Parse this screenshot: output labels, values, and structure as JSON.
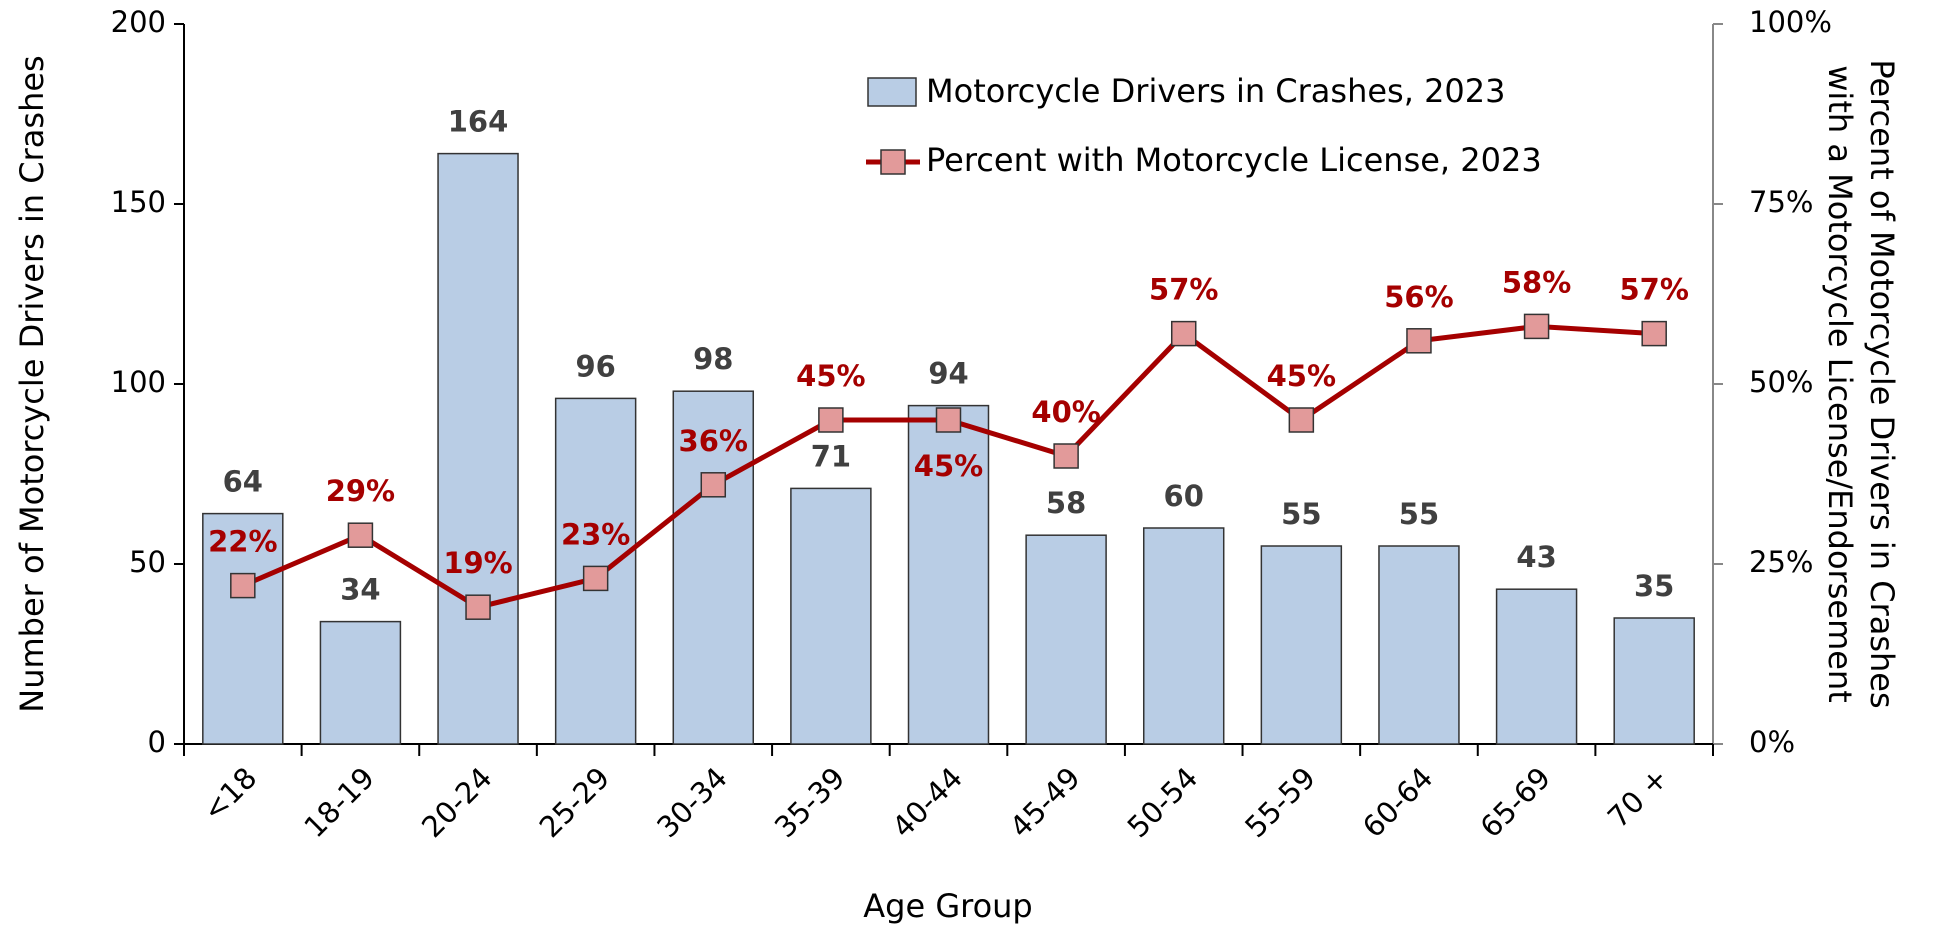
{
  "chart_data": {
    "type": "bar_line",
    "x_label": "Age Group",
    "y_label": "Number of Motorcycle Drivers in Crashes",
    "y2_label": [
      "Percent of Motorcycle Drivers in Crashes",
      "with a Motorcycle License/Endorsement"
    ],
    "categories": [
      "<18",
      "18-19",
      "20-24",
      "25-29",
      "30-34",
      "35-39",
      "40-44",
      "45-49",
      "50-54",
      "55-59",
      "60-64",
      "65-69",
      "70 +"
    ],
    "series": [
      {
        "name": "Motorcycle Drivers in Crashes, 2023",
        "type": "bar",
        "color": "#b9cde5",
        "values": [
          64,
          34,
          164,
          96,
          98,
          71,
          94,
          58,
          60,
          55,
          55,
          43,
          35
        ]
      },
      {
        "name": "Percent with Motorcycle License, 2023",
        "type": "line",
        "axis": "y2",
        "color": "#a50000",
        "marker_color": "#e29a9a",
        "values": [
          22,
          29,
          19,
          23,
          36,
          45,
          45,
          40,
          57,
          45,
          56,
          58,
          57
        ],
        "value_labels": [
          "22%",
          "29%",
          "19%",
          "23%",
          "36%",
          "45%",
          "45%",
          "40%",
          "57%",
          "45%",
          "56%",
          "58%",
          "57%"
        ]
      }
    ],
    "ylim": [
      0,
      200
    ],
    "yticks": [
      0,
      50,
      100,
      150,
      200
    ],
    "y2lim": [
      0,
      100
    ],
    "y2ticks": [
      {
        "value": 0,
        "label": "0%"
      },
      {
        "value": 25,
        "label": "25%"
      },
      {
        "value": 50,
        "label": "50%"
      },
      {
        "value": 75,
        "label": "75%"
      },
      {
        "value": 100,
        "label": "100%"
      }
    ],
    "legend": "top-right"
  }
}
